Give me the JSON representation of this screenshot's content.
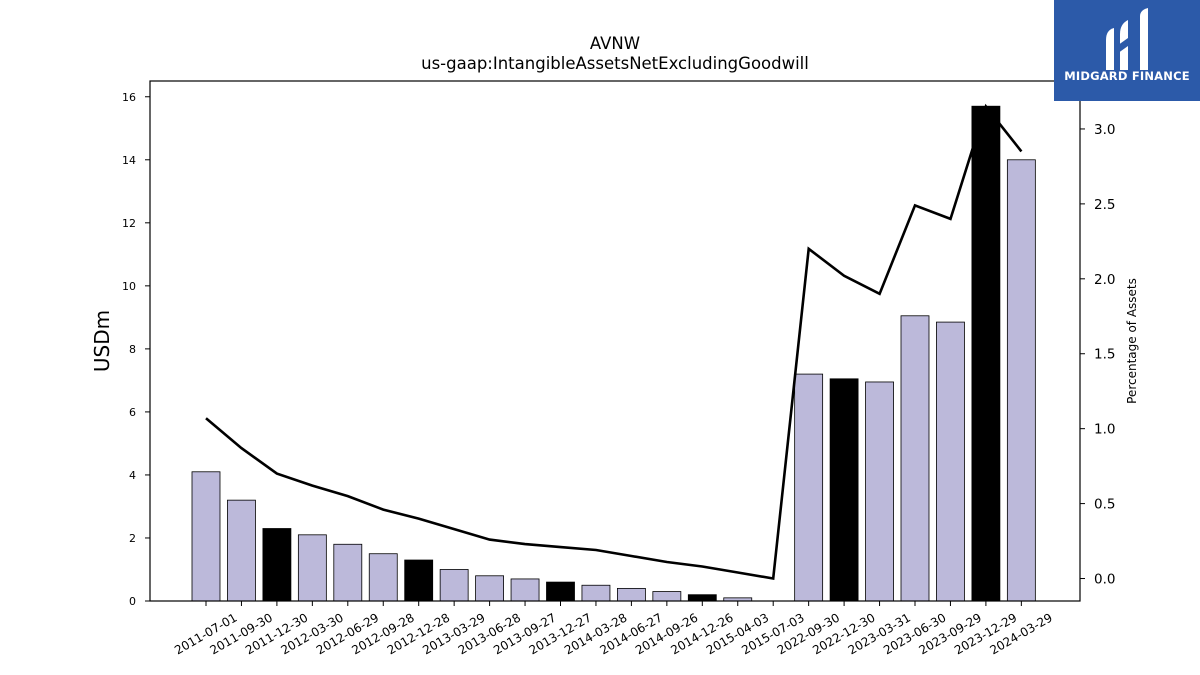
{
  "chart_data": {
    "type": "bar",
    "title": "AVNW",
    "subtitle": "us-gaap:IntangibleAssetsNetExcludingGoodwill",
    "ylabel": "USDm",
    "y2label": "Percentage of Assets",
    "ylim": [
      0,
      16.5
    ],
    "y2lim": [
      -0.15,
      3.32
    ],
    "yticks": [
      "0",
      "2",
      "4",
      "6",
      "8",
      "10",
      "12",
      "14",
      "16"
    ],
    "y2ticks": [
      "0.0",
      "0.5",
      "1.0",
      "1.5",
      "2.0",
      "2.5",
      "3.0"
    ],
    "categories": [
      "2011-07-01",
      "2011-09-30",
      "2011-12-30",
      "2012-03-30",
      "2012-06-29",
      "2012-09-28",
      "2012-12-28",
      "2013-03-29",
      "2013-06-28",
      "2013-09-27",
      "2013-12-27",
      "2014-03-28",
      "2014-06-27",
      "2014-09-26",
      "2014-12-26",
      "2015-04-03",
      "2015-07-03",
      "2022-09-30",
      "2022-12-30",
      "2023-03-31",
      "2023-06-30",
      "2023-09-29",
      "2023-12-29",
      "2024-03-29"
    ],
    "series": [
      {
        "type": "bar",
        "values": [
          4.1,
          3.2,
          2.3,
          2.1,
          1.8,
          1.5,
          1.3,
          1.0,
          0.8,
          0.7,
          0.6,
          0.5,
          0.4,
          0.3,
          0.2,
          0.1,
          0.0,
          7.2,
          7.05,
          6.95,
          9.05,
          8.85,
          15.7,
          14.0
        ],
        "highlight": [
          false,
          false,
          true,
          false,
          false,
          false,
          true,
          false,
          false,
          false,
          true,
          false,
          false,
          false,
          true,
          false,
          false,
          false,
          true,
          false,
          false,
          false,
          true,
          false
        ]
      },
      {
        "type": "line",
        "axis": "right",
        "values": [
          1.07,
          0.87,
          0.7,
          0.62,
          0.55,
          0.46,
          0.4,
          0.33,
          0.26,
          0.23,
          0.21,
          0.19,
          0.15,
          0.11,
          0.08,
          0.04,
          0.0,
          2.2,
          2.02,
          1.9,
          2.49,
          2.4,
          3.15,
          2.85
        ]
      }
    ],
    "colors": {
      "bar": "#bcb9da",
      "highlight": "#000000",
      "line": "#000000"
    },
    "grid": false
  },
  "logo": {
    "text": "MIDGARD FINANCE"
  }
}
